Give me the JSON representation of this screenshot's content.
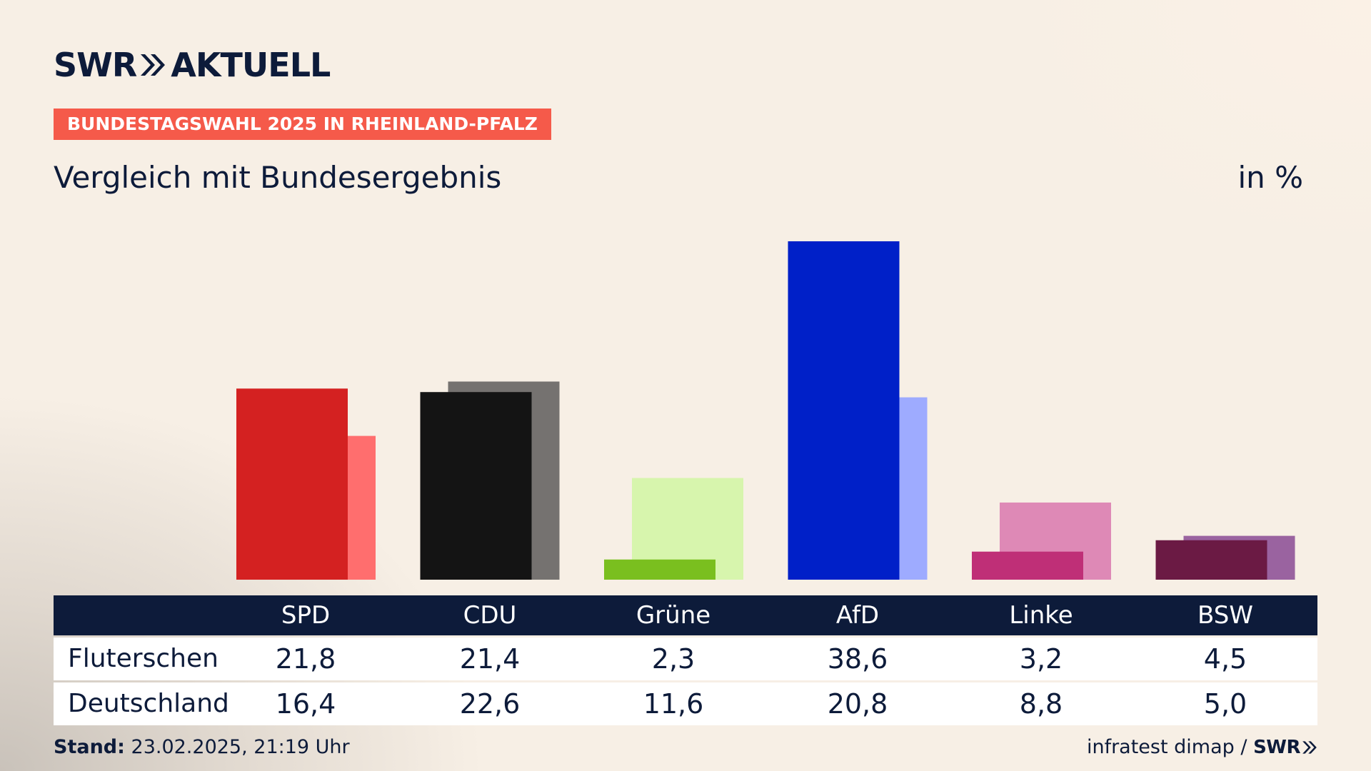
{
  "brand": {
    "logo_swr": "SWR",
    "logo_aktuell": "AKTUELL",
    "logo_icon": "double-chevron-right-icon"
  },
  "kicker": "BUNDESTAGSWAHL 2025 IN RHEINLAND-PFALZ",
  "subtitle": "Vergleich mit Bundesergebnis",
  "unit": "in %",
  "table": {
    "parties": [
      "SPD",
      "CDU",
      "Grüne",
      "AfD",
      "Linke",
      "BSW"
    ],
    "rows": [
      {
        "label": "Fluterschen",
        "values": [
          "21,8",
          "21,4",
          "2,3",
          "38,6",
          "3,2",
          "4,5"
        ]
      },
      {
        "label": "Deutschland",
        "values": [
          "16,4",
          "22,6",
          "11,6",
          "20,8",
          "8,8",
          "5,0"
        ]
      }
    ]
  },
  "footer": {
    "stand_label": "Stand:",
    "stand_value": "23.02.2025, 21:19 Uhr",
    "source": "infratest dimap /",
    "source_brand": "SWR"
  },
  "chart_data": {
    "type": "bar",
    "categories": [
      "SPD",
      "CDU",
      "Grüne",
      "AfD",
      "Linke",
      "BSW"
    ],
    "series": [
      {
        "name": "Fluterschen",
        "values": [
          21.8,
          21.4,
          2.3,
          38.6,
          3.2,
          4.5
        ]
      },
      {
        "name": "Deutschland",
        "values": [
          16.4,
          22.6,
          11.6,
          20.8,
          8.8,
          5.0
        ]
      }
    ],
    "colors": {
      "primary": [
        "#d42121",
        "#141414",
        "#7abf1f",
        "#0020c8",
        "#bf2f77",
        "#6b1a44"
      ],
      "secondary": [
        "#ff6e6e",
        "#757270",
        "#d7f5ad",
        "#9eabff",
        "#de89b6",
        "#9a63a0"
      ]
    },
    "ylabel": "in %",
    "grid": false
  }
}
